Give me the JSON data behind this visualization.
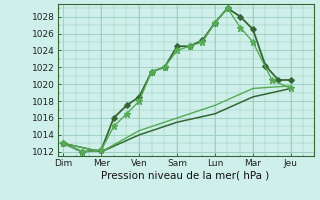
{
  "background_color": "#cff0ea",
  "grid_color": "#99ccbb",
  "xlabel": "Pression niveau de la mer( hPa )",
  "ylim": [
    1011.5,
    1029.5
  ],
  "yticks": [
    1012,
    1014,
    1016,
    1018,
    1020,
    1022,
    1024,
    1026,
    1028
  ],
  "x_day_labels": [
    "Dim",
    "Mer",
    "Ven",
    "Sam",
    "Lun",
    "Mar",
    "Jeu"
  ],
  "x_day_positions": [
    0,
    1,
    2,
    3,
    4,
    5,
    6
  ],
  "xlim": [
    -0.15,
    6.6
  ],
  "series": [
    {
      "x": [
        0.0,
        0.5,
        1.0,
        1.33,
        1.67,
        2.0,
        2.33,
        2.67,
        3.0,
        3.33,
        3.67,
        4.0,
        4.33,
        4.67,
        5.0,
        5.33,
        5.67,
        6.0
      ],
      "y": [
        1013,
        1012,
        1012.2,
        1016,
        1017.5,
        1018.5,
        1021.5,
        1022,
        1024.5,
        1024.5,
        1025.2,
        1027.3,
        1029.0,
        1028.0,
        1026.5,
        1022.2,
        1020.5,
        1020.5
      ],
      "color": "#336633",
      "lw": 1.3,
      "marker": "D",
      "ms": 2.8
    },
    {
      "x": [
        0.0,
        0.5,
        1.0,
        1.33,
        1.67,
        2.0,
        2.33,
        2.67,
        3.0,
        3.33,
        3.67,
        4.0,
        4.33,
        4.67,
        5.0,
        5.5,
        6.0
      ],
      "y": [
        1013,
        1012,
        1012.2,
        1015,
        1016.5,
        1018,
        1021.5,
        1022,
        1024,
        1024.5,
        1025,
        1027.3,
        1029.0,
        1026.7,
        1025,
        1020.5,
        1019.5
      ],
      "color": "#55aa55",
      "lw": 1.0,
      "marker": "*",
      "ms": 4.5
    },
    {
      "x": [
        0.0,
        1.0,
        2.0,
        3.0,
        4.0,
        5.0,
        6.0
      ],
      "y": [
        1013,
        1012,
        1014,
        1015.5,
        1016.5,
        1018.5,
        1019.5
      ],
      "color": "#336633",
      "lw": 1.1,
      "marker": null,
      "ms": 0
    },
    {
      "x": [
        0.0,
        1.0,
        2.0,
        3.0,
        4.0,
        5.0,
        6.0
      ],
      "y": [
        1013,
        1012,
        1014.5,
        1016,
        1017.5,
        1019.5,
        1019.8
      ],
      "color": "#55aa55",
      "lw": 1.0,
      "marker": null,
      "ms": 0
    }
  ]
}
